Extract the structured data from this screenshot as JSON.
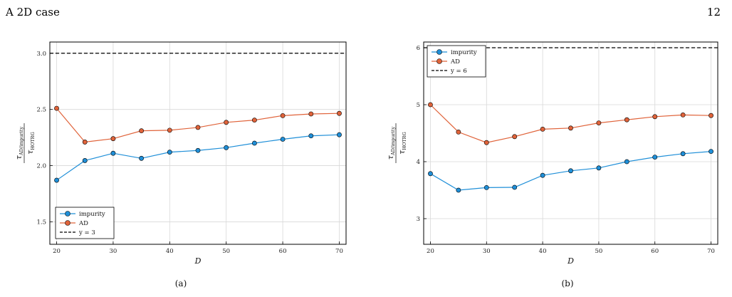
{
  "header": {
    "section": "A   2D case",
    "page_number": "12"
  },
  "colors": {
    "impurity": "#1f8fd8",
    "ad": "#e0633a",
    "ref": "#000000",
    "grid": "#d8d8d8"
  },
  "ylabel": {
    "symbol": "τ",
    "numerator_sub": "AD/impurity",
    "denominator_sub": "HOTRG"
  },
  "chart_data": [
    {
      "type": "line",
      "caption": "(a)",
      "xlabel": "D",
      "x": [
        20,
        25,
        30,
        35,
        40,
        45,
        50,
        55,
        60,
        65,
        70
      ],
      "xlim": [
        18.8,
        71.2
      ],
      "ylim": [
        1.3,
        3.1
      ],
      "xticks": [
        20,
        30,
        40,
        50,
        60,
        70
      ],
      "yticks": [
        1.5,
        2.0,
        2.5,
        3.0
      ],
      "ytick_labels": [
        "1.5",
        "2.0",
        "2.5",
        "3.0"
      ],
      "grid": true,
      "legend_position": "bottom-left",
      "series": [
        {
          "name": "impurity",
          "values": [
            1.87,
            2.045,
            2.11,
            2.065,
            2.12,
            2.135,
            2.16,
            2.2,
            2.235,
            2.265,
            2.275
          ]
        },
        {
          "name": "AD",
          "values": [
            2.51,
            2.21,
            2.24,
            2.31,
            2.315,
            2.34,
            2.385,
            2.405,
            2.445,
            2.46,
            2.465
          ]
        }
      ],
      "reference": {
        "label": "y = 3",
        "value": 3.0
      }
    },
    {
      "type": "line",
      "caption": "(b)",
      "xlabel": "D",
      "x": [
        20,
        25,
        30,
        35,
        40,
        45,
        50,
        55,
        60,
        65,
        70
      ],
      "xlim": [
        18.8,
        71.2
      ],
      "ylim": [
        2.55,
        6.1
      ],
      "xticks": [
        20,
        30,
        40,
        50,
        60,
        70
      ],
      "yticks": [
        3,
        4,
        5,
        6
      ],
      "ytick_labels": [
        "3",
        "4",
        "5",
        "6"
      ],
      "grid": true,
      "legend_position": "top-left",
      "series": [
        {
          "name": "impurity",
          "values": [
            3.79,
            3.5,
            3.545,
            3.55,
            3.76,
            3.84,
            3.89,
            4.0,
            4.08,
            4.14,
            4.18
          ]
        },
        {
          "name": "AD",
          "values": [
            5.0,
            4.52,
            4.335,
            4.44,
            4.57,
            4.59,
            4.68,
            4.735,
            4.79,
            4.82,
            4.81
          ]
        }
      ],
      "reference": {
        "label": "y = 6",
        "value": 6.0
      }
    }
  ]
}
